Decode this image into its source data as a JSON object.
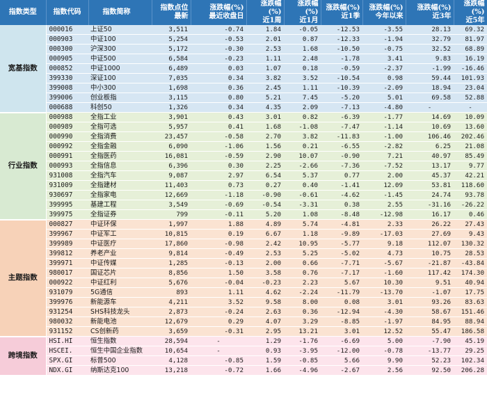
{
  "headers": {
    "category": "指数类型",
    "code": "指数代码",
    "name": "指数简称",
    "points_line1": "指数点位",
    "points_line2": "最新",
    "chg_label": "涨跌幅(%)",
    "last_close": "最近收盘日",
    "w1": "近1周",
    "m1": "近1月",
    "q1": "近1季",
    "ytd": "今年以来",
    "y3": "近3年",
    "y5": "近5年"
  },
  "groups": [
    {
      "label": "宽基指数",
      "rows": [
        {
          "code": "000016",
          "name": "上证50",
          "points": "3,511",
          "d": "-0.74",
          "w": "1.84",
          "m": "-0.05",
          "q": "-12.53",
          "ytd": "-3.55",
          "y3": "28.13",
          "y5": "69.32"
        },
        {
          "code": "000903",
          "name": "中证100",
          "points": "5,254",
          "d": "-0.53",
          "w": "2.01",
          "m": "0.87",
          "q": "-12.33",
          "ytd": "-1.94",
          "y3": "32.79",
          "y5": "81.97"
        },
        {
          "code": "000300",
          "name": "沪深300",
          "points": "5,172",
          "d": "-0.30",
          "w": "2.53",
          "m": "1.68",
          "q": "-10.50",
          "ytd": "-0.75",
          "y3": "32.52",
          "y5": "68.89"
        },
        {
          "code": "000905",
          "name": "中证500",
          "points": "6,584",
          "d": "-0.23",
          "w": "1.11",
          "m": "2.48",
          "q": "-1.78",
          "ytd": "3.41",
          "y3": "9.83",
          "y5": "16.19"
        },
        {
          "code": "000852",
          "name": "中证1000",
          "points": "6,489",
          "d": "0.03",
          "w": "1.07",
          "m": "0.18",
          "q": "-0.59",
          "ytd": "-2.37",
          "y3": "-1.99",
          "y5": "-16.46"
        },
        {
          "code": "399330",
          "name": "深证100",
          "points": "7,035",
          "d": "0.34",
          "w": "3.82",
          "m": "3.52",
          "q": "-10.54",
          "ytd": "0.98",
          "y3": "59.44",
          "y5": "101.93"
        },
        {
          "code": "399008",
          "name": "中小300",
          "points": "1,698",
          "d": "0.36",
          "w": "2.45",
          "m": "1.11",
          "q": "-10.39",
          "ytd": "-2.09",
          "y3": "18.94",
          "y5": "23.04"
        },
        {
          "code": "399006",
          "name": "创业板指",
          "points": "3,115",
          "d": "0.80",
          "w": "5.21",
          "m": "7.45",
          "q": "-5.20",
          "ytd": "5.01",
          "y3": "69.58",
          "y5": "52.88"
        },
        {
          "code": "000688",
          "name": "科创50",
          "points": "1,326",
          "d": "0.34",
          "w": "4.35",
          "m": "2.09",
          "q": "-7.13",
          "ytd": "-4.80",
          "y3": "-",
          "y5": "-"
        }
      ]
    },
    {
      "label": "行业指数",
      "rows": [
        {
          "code": "000988",
          "name": "全指工业",
          "points": "3,901",
          "d": "0.43",
          "w": "3.01",
          "m": "0.82",
          "q": "-6.39",
          "ytd": "-1.77",
          "y3": "14.69",
          "y5": "10.09"
        },
        {
          "code": "000989",
          "name": "全指可选",
          "points": "5,957",
          "d": "0.41",
          "w": "1.68",
          "m": "-1.08",
          "q": "-7.47",
          "ytd": "-1.14",
          "y3": "10.69",
          "y5": "13.60"
        },
        {
          "code": "000990",
          "name": "全指消费",
          "points": "23,457",
          "d": "-0.58",
          "w": "2.70",
          "m": "3.82",
          "q": "-11.83",
          "ytd": "-1.00",
          "y3": "106.46",
          "y5": "202.46"
        },
        {
          "code": "000992",
          "name": "全指金融",
          "points": "6,090",
          "d": "-1.06",
          "w": "1.56",
          "m": "0.21",
          "q": "-6.55",
          "ytd": "-2.82",
          "y3": "6.25",
          "y5": "21.08"
        },
        {
          "code": "000991",
          "name": "全指医药",
          "points": "16,081",
          "d": "-0.59",
          "w": "2.90",
          "m": "10.07",
          "q": "-0.90",
          "ytd": "7.21",
          "y3": "40.97",
          "y5": "85.49"
        },
        {
          "code": "000993",
          "name": "全指信息",
          "points": "6,396",
          "d": "0.30",
          "w": "2.25",
          "m": "-2.66",
          "q": "-7.36",
          "ytd": "-7.52",
          "y3": "13.17",
          "y5": "9.77"
        },
        {
          "code": "931008",
          "name": "全指汽车",
          "points": "9,087",
          "d": "2.97",
          "w": "6.54",
          "m": "5.37",
          "q": "0.77",
          "ytd": "2.00",
          "y3": "45.37",
          "y5": "42.21"
        },
        {
          "code": "931009",
          "name": "全指建材",
          "points": "11,403",
          "d": "0.73",
          "w": "0.27",
          "m": "0.40",
          "q": "-1.41",
          "ytd": "12.09",
          "y3": "53.81",
          "y5": "118.60"
        },
        {
          "code": "930697",
          "name": "全指家电",
          "points": "12,669",
          "d": "-1.18",
          "w": "-0.90",
          "m": "-0.61",
          "q": "-4.62",
          "ytd": "-1.45",
          "y3": "24.74",
          "y5": "93.78"
        },
        {
          "code": "399995",
          "name": "基建工程",
          "points": "3,549",
          "d": "-0.69",
          "w": "-0.54",
          "m": "-3.31",
          "q": "0.38",
          "ytd": "2.55",
          "y3": "-31.16",
          "y5": "-26.22"
        },
        {
          "code": "399975",
          "name": "全指证券",
          "points": "799",
          "d": "-0.11",
          "w": "5.20",
          "m": "1.08",
          "q": "-8.48",
          "ytd": "-12.98",
          "y3": "16.17",
          "y5": "0.46"
        }
      ]
    },
    {
      "label": "主题指数",
      "rows": [
        {
          "code": "000827",
          "name": "中证环保",
          "points": "1,997",
          "d": "1.88",
          "w": "4.89",
          "m": "5.74",
          "q": "-4.81",
          "ytd": "2.33",
          "y3": "26.22",
          "y5": "27.43"
        },
        {
          "code": "399967",
          "name": "中证军工",
          "points": "10,815",
          "d": "0.19",
          "w": "6.67",
          "m": "1.18",
          "q": "-9.89",
          "ytd": "-17.03",
          "y3": "27.69",
          "y5": "9.43"
        },
        {
          "code": "399989",
          "name": "中证医疗",
          "points": "17,860",
          "d": "-0.98",
          "w": "2.42",
          "m": "10.95",
          "q": "-5.77",
          "ytd": "9.18",
          "y3": "112.07",
          "y5": "130.32"
        },
        {
          "code": "399812",
          "name": "养老产业",
          "points": "9,814",
          "d": "-0.49",
          "w": "2.53",
          "m": "5.25",
          "q": "-5.02",
          "ytd": "4.73",
          "y3": "10.75",
          "y5": "28.53"
        },
        {
          "code": "399971",
          "name": "中证传媒",
          "points": "1,285",
          "d": "-0.13",
          "w": "2.00",
          "m": "0.66",
          "q": "-7.71",
          "ytd": "-5.67",
          "y3": "-21.87",
          "y5": "-43.84"
        },
        {
          "code": "980017",
          "name": "国证芯片",
          "points": "8,856",
          "d": "1.50",
          "w": "3.58",
          "m": "0.76",
          "q": "-7.17",
          "ytd": "-1.60",
          "y3": "117.42",
          "y5": "174.30"
        },
        {
          "code": "000922",
          "name": "中证红利",
          "points": "5,676",
          "d": "-0.04",
          "w": "-0.23",
          "m": "2.23",
          "q": "5.67",
          "ytd": "10.30",
          "y3": "9.51",
          "y5": "40.94"
        },
        {
          "code": "931079",
          "name": "5G通信",
          "points": "893",
          "d": "1.11",
          "w": "4.62",
          "m": "-2.24",
          "q": "-11.79",
          "ytd": "-13.70",
          "y3": "-1.07",
          "y5": "17.75"
        },
        {
          "code": "399976",
          "name": "新能源车",
          "points": "4,211",
          "d": "3.52",
          "w": "9.58",
          "m": "8.00",
          "q": "0.08",
          "ytd": "3.01",
          "y3": "93.26",
          "y5": "83.63"
        },
        {
          "code": "931254",
          "name": "SHS科技龙头",
          "points": "2,873",
          "d": "-0.24",
          "w": "2.63",
          "m": "0.36",
          "q": "-12.94",
          "ytd": "-4.30",
          "y3": "58.67",
          "y5": "151.46"
        },
        {
          "code": "980032",
          "name": "新能电池",
          "points": "12,679",
          "d": "0.29",
          "w": "4.07",
          "m": "3.29",
          "q": "-8.85",
          "ytd": "-1.97",
          "y3": "84.95",
          "y5": "88.94"
        },
        {
          "code": "931152",
          "name": "CS创新药",
          "points": "3,659",
          "d": "-0.31",
          "w": "2.95",
          "m": "13.21",
          "q": "3.01",
          "ytd": "12.52",
          "y3": "55.47",
          "y5": "186.58"
        }
      ]
    },
    {
      "label": "跨境指数",
      "rows": [
        {
          "code": "HSI.HI",
          "name": "恒生指数",
          "points": "28,594",
          "d": "-",
          "w": "1.29",
          "m": "-1.76",
          "q": "-6.69",
          "ytd": "5.00",
          "y3": "-7.90",
          "y5": "45.19"
        },
        {
          "code": "HSCEI.",
          "name": "恒生中国企业指数",
          "points": "10,654",
          "d": "-",
          "w": "0.93",
          "m": "-3.95",
          "q": "-12.00",
          "ytd": "-0.78",
          "y3": "-13.77",
          "y5": "29.25"
        },
        {
          "code": "SPX.GI",
          "name": "标普500",
          "points": "4,128",
          "d": "-0.85",
          "w": "1.59",
          "m": "-0.85",
          "q": "5.66",
          "ytd": "9.90",
          "y3": "52.23",
          "y5": "102.34"
        },
        {
          "code": "NDX.GI",
          "name": "纳斯达克100",
          "points": "13,218",
          "d": "-0.72",
          "w": "1.66",
          "m": "-4.96",
          "q": "-2.67",
          "ytd": "2.56",
          "y3": "92.50",
          "y5": "206.28"
        }
      ]
    }
  ]
}
